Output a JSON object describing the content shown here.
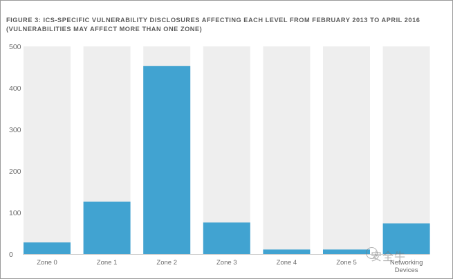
{
  "chart_data": {
    "type": "bar",
    "title": "FIGURE 3: ICS-SPECIFIC VULNERABILITY DISCLOSURES AFFECTING EACH LEVEL FROM FEBRUARY 2013 TO APRIL 2016",
    "subtitle": "(VULNERABILITIES MAY AFFECT MORE THAN ONE ZONE)",
    "categories": [
      "Zone 0",
      "Zone 1",
      "Zone 2",
      "Zone 3",
      "Zone 4",
      "Zone 5",
      "Networking Devices"
    ],
    "values": [
      28,
      126,
      453,
      76,
      11,
      11,
      74
    ],
    "xlabel": "",
    "ylabel": "",
    "ylim": [
      0,
      500
    ],
    "yticks": [
      0,
      100,
      200,
      300,
      400,
      500
    ],
    "grid": false,
    "colors": {
      "bar": "#41a3d1",
      "background_column": "#eeeeee",
      "axis_text": "#6a6a6a"
    }
  },
  "watermark": "安全牛"
}
